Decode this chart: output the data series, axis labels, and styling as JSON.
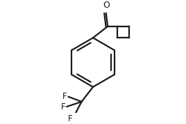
{
  "bg_color": "#ffffff",
  "line_color": "#1a1a1a",
  "line_width": 1.6,
  "font_size": 8.5,
  "bx": 0.0,
  "by": 0.02,
  "br": 0.3,
  "xlim": [
    -0.8,
    0.8
  ],
  "ylim": [
    -0.6,
    0.65
  ]
}
